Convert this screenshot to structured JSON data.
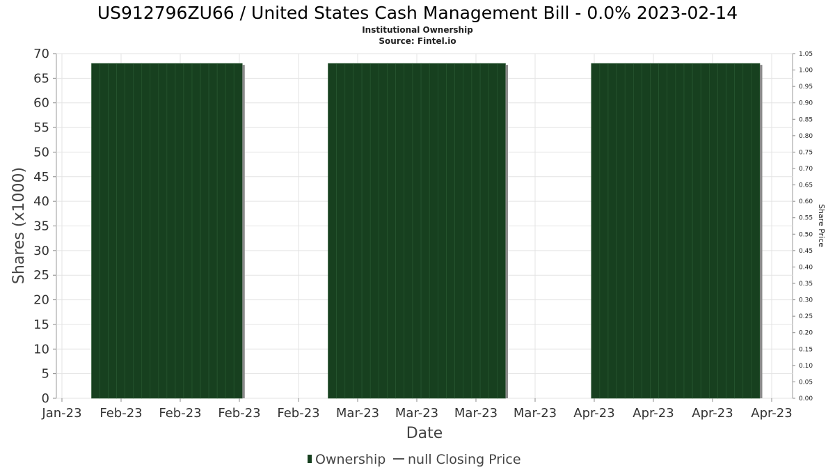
{
  "chart_data": {
    "type": "bar",
    "title": "US912796ZU66 / United States Cash Management Bill - 0.0% 2023-02-14",
    "subtitle_lines": [
      "Institutional Ownership",
      "Source: Fintel.io"
    ],
    "xlabel": "Date",
    "ylabel": "Shares (x1000)",
    "y2label": "Share Price",
    "ylim": [
      0,
      70
    ],
    "y2lim": [
      0,
      1.05
    ],
    "y_ticks": [
      0,
      5,
      10,
      15,
      20,
      25,
      30,
      35,
      40,
      45,
      50,
      55,
      60,
      65,
      70
    ],
    "y2_ticks": [
      "0.00",
      "0.05",
      "0.10",
      "0.15",
      "0.20",
      "0.25",
      "0.30",
      "0.35",
      "0.40",
      "0.45",
      "0.50",
      "0.55",
      "0.60",
      "0.65",
      "0.70",
      "0.75",
      "0.80",
      "0.85",
      "0.90",
      "0.95",
      "1.00",
      "1.05"
    ],
    "x_tick_labels": [
      "Jan-23",
      "Feb-23",
      "Feb-23",
      "Feb-23",
      "Feb-23",
      "Mar-23",
      "Mar-23",
      "Mar-23",
      "Mar-23",
      "Apr-23",
      "Apr-23",
      "Apr-23",
      "Apr-23"
    ],
    "grid": true,
    "legend_position": "bottom-center",
    "series": [
      {
        "name": "Ownership",
        "type": "bar",
        "color": "#17401f",
        "periods": [
          {
            "start_tick": 0.5,
            "end_tick": 3.05,
            "value": 68
          },
          {
            "start_tick": 4.5,
            "end_tick": 7.5,
            "value": 68
          },
          {
            "start_tick": 8.95,
            "end_tick": 11.8,
            "value": 68
          }
        ]
      },
      {
        "name": "null Closing Price",
        "type": "line",
        "color": "#555555",
        "values": []
      }
    ]
  }
}
